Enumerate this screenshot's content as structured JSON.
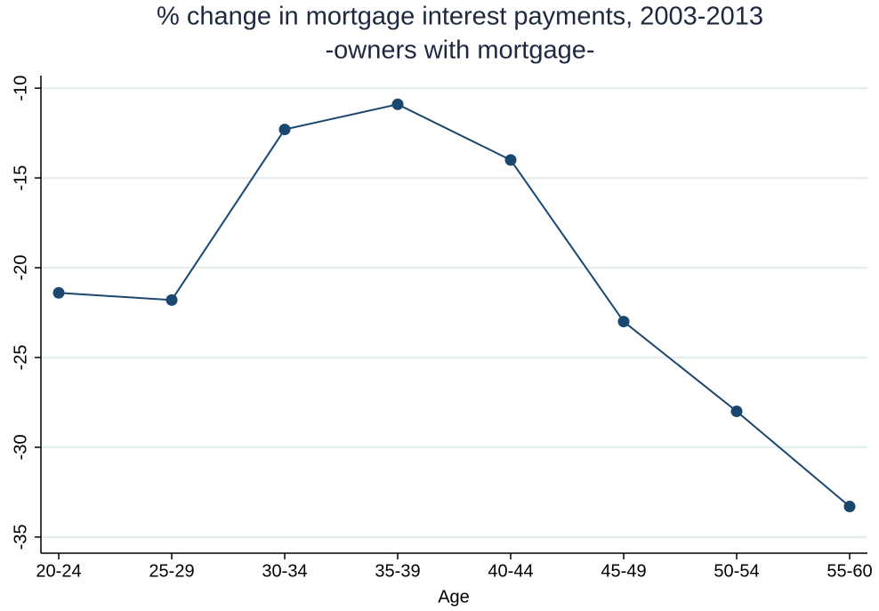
{
  "chart_data": {
    "type": "line",
    "title": "% change in mortgage interest payments, 2003-2013",
    "subtitle": "-owners with mortgage-",
    "x_label": "Age",
    "categories": [
      "20-24",
      "25-29",
      "30-34",
      "35-39",
      "40-44",
      "45-49",
      "50-54",
      "55-60"
    ],
    "series": [
      {
        "color": "#1a476f",
        "values": [
          -21.4,
          -21.8,
          -12.3,
          -10.9,
          -14.0,
          -23.0,
          -28.0,
          -33.3
        ]
      }
    ],
    "ylim": [
      -35.9,
      -9.3
    ],
    "yticks": [
      -35,
      -30,
      -25,
      -20,
      -15,
      -10
    ],
    "grid": true
  }
}
